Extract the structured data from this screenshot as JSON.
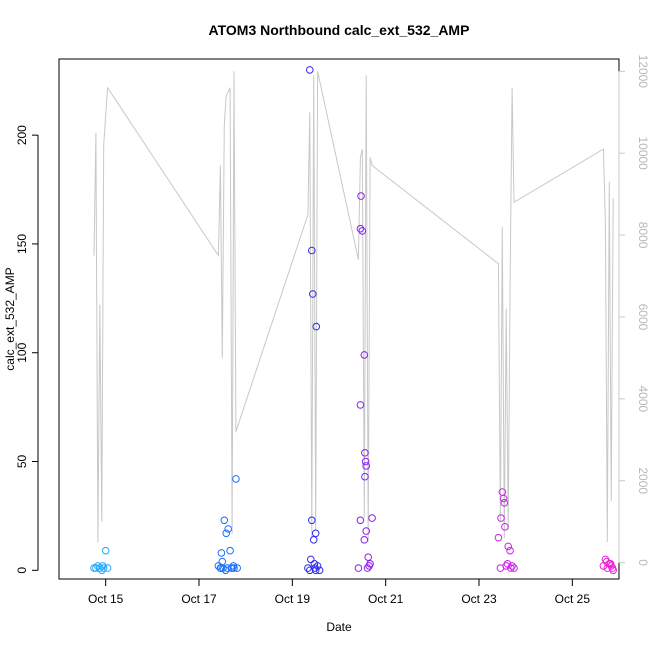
{
  "chart_data": {
    "type": "scatter",
    "title": "ATOM3 Northbound calc_ext_532_AMP",
    "xlabel": "Date",
    "ylabel": "calc_ext_532_AMP",
    "ylabel_right": "",
    "x_is_date": true,
    "xlim": [
      "2019-10-14",
      "2019-10-26"
    ],
    "x_ticks": [
      {
        "value": "2019-10-15",
        "label": "Oct 15"
      },
      {
        "value": "2019-10-17",
        "label": "Oct 17"
      },
      {
        "value": "2019-10-19",
        "label": "Oct 19"
      },
      {
        "value": "2019-10-21",
        "label": "Oct 21"
      },
      {
        "value": "2019-10-23",
        "label": "Oct 23"
      },
      {
        "value": "2019-10-25",
        "label": "Oct 25"
      }
    ],
    "ylim": [
      -4,
      235
    ],
    "y_ticks": [
      0,
      50,
      100,
      150,
      200
    ],
    "ylim_right": [
      -400,
      12300
    ],
    "y_ticks_right": [
      0,
      2000,
      4000,
      6000,
      8000,
      10000,
      12000
    ],
    "grid": false,
    "legend": "none",
    "colors": {
      "line": "#c8c8c8",
      "cluster_1": "#1ea8ff",
      "cluster_2": "#1870ff",
      "cluster_3": "#2e2cf0",
      "cluster_4": "#8a22ee",
      "cluster_5": "#ce22ee",
      "cluster_6": "#f020d8"
    },
    "series": [
      {
        "kind": "points",
        "axis": "left",
        "x": [
          "2019-10-14T18:00",
          "2019-10-14T19:00",
          "2019-10-14T20:00",
          "2019-10-14T21:00",
          "2019-10-14T22:00",
          "2019-10-14T23:00",
          "2019-10-15T00:00",
          "2019-10-15T01:00",
          "2019-10-14T22:30",
          "2019-10-17T10:00",
          "2019-10-17T11:00",
          "2019-10-17T11:30",
          "2019-10-17T12:00",
          "2019-10-17T13:00",
          "2019-10-17T14:00",
          "2019-10-17T15:00",
          "2019-10-17T16:00",
          "2019-10-17T17:00",
          "2019-10-17T18:00",
          "2019-10-17T19:00",
          "2019-10-17T11:20",
          "2019-10-17T12:20",
          "2019-10-17T13:40",
          "2019-10-17T14:40",
          "2019-10-17T16:40",
          "2019-10-17T17:40",
          "2019-10-17T19:40",
          "2019-10-19T08:00",
          "2019-10-19T09:00",
          "2019-10-19T10:00",
          "2019-10-19T11:00",
          "2019-10-19T12:00",
          "2019-10-19T13:00",
          "2019-10-19T09:30",
          "2019-10-19T11:20",
          "2019-10-19T12:20",
          "2019-10-19T10:30",
          "2019-10-19T10:00",
          "2019-10-19T09:00",
          "2019-10-19T12:00",
          "2019-10-19T11:40",
          "2019-10-19T14:00",
          "2019-10-20T10:00",
          "2019-10-20T11:00",
          "2019-10-20T11:20",
          "2019-10-20T11:00",
          "2019-10-20T12:00",
          "2019-10-20T13:00",
          "2019-10-20T13:00",
          "2019-10-20T13:20",
          "2019-10-20T13:40",
          "2019-10-20T14:00",
          "2019-10-20T13:20",
          "2019-10-20T11:00",
          "2019-10-20T14:00",
          "2019-10-20T15:00",
          "2019-10-20T16:00",
          "2019-10-20T17:00",
          "2019-10-20T15:30",
          "2019-10-20T14:40",
          "2019-10-23T10:00",
          "2019-10-23T11:00",
          "2019-10-23T11:20",
          "2019-10-23T12:00",
          "2019-10-23T12:40",
          "2019-10-23T13:00",
          "2019-10-23T13:20",
          "2019-10-23T14:00",
          "2019-10-23T15:00",
          "2019-10-23T16:00",
          "2019-10-23T17:00",
          "2019-10-23T18:00",
          "2019-10-23T14:40",
          "2019-10-23T16:20",
          "2019-10-25T16:00",
          "2019-10-25T17:00",
          "2019-10-25T18:00",
          "2019-10-25T19:00",
          "2019-10-25T20:00",
          "2019-10-25T21:00",
          "2019-10-25T17:40",
          "2019-10-25T19:40",
          "2019-10-25T20:40"
        ],
        "y": [
          1,
          1,
          2,
          1,
          0,
          1,
          9,
          1,
          2,
          2,
          1,
          8,
          4,
          23,
          17,
          19,
          9,
          1,
          1,
          42,
          1,
          1,
          0,
          1,
          1,
          2,
          1,
          1,
          0,
          23,
          14,
          17,
          2,
          5,
          3,
          112,
          127,
          147,
          230,
          0,
          1,
          0,
          1,
          23,
          172,
          157,
          156,
          14,
          99,
          54,
          50,
          48,
          43,
          76,
          18,
          6,
          3,
          24,
          2,
          1,
          15,
          1,
          24,
          36,
          33,
          31,
          20,
          2,
          11,
          9,
          2,
          1,
          3,
          1,
          2,
          5,
          1,
          3,
          2,
          0,
          4,
          3,
          1
        ],
        "cluster": [
          1,
          1,
          1,
          1,
          1,
          1,
          1,
          1,
          1,
          2,
          2,
          2,
          2,
          2,
          2,
          2,
          2,
          2,
          2,
          2,
          2,
          2,
          2,
          2,
          2,
          2,
          2,
          3,
          3,
          3,
          3,
          3,
          3,
          3,
          3,
          3,
          3,
          3,
          3,
          3,
          3,
          3,
          4,
          4,
          4,
          4,
          4,
          4,
          4,
          4,
          4,
          4,
          4,
          4,
          4,
          4,
          4,
          4,
          4,
          4,
          5,
          5,
          5,
          5,
          5,
          5,
          5,
          5,
          5,
          5,
          5,
          5,
          5,
          5,
          6,
          6,
          6,
          6,
          6,
          6,
          6,
          6,
          6
        ]
      },
      {
        "kind": "line",
        "axis": "right",
        "x": [
          "2019-10-14T18:00",
          "2019-10-14T19:00",
          "2019-10-14T20:00",
          "2019-10-14T21:00",
          "2019-10-14T22:00",
          "2019-10-14T23:00",
          "2019-10-15T01:00",
          "2019-10-17T10:00",
          "2019-10-17T11:00",
          "2019-10-17T12:00",
          "2019-10-17T13:00",
          "2019-10-17T14:00",
          "2019-10-17T15:00",
          "2019-10-17T16:00",
          "2019-10-17T17:00",
          "2019-10-17T18:00",
          "2019-10-17T19:00",
          "2019-10-19T08:00",
          "2019-10-19T09:00",
          "2019-10-19T10:00",
          "2019-10-19T11:00",
          "2019-10-19T12:00",
          "2019-10-19T13:00",
          "2019-10-20T10:00",
          "2019-10-20T11:00",
          "2019-10-20T12:00",
          "2019-10-20T13:00",
          "2019-10-20T14:00",
          "2019-10-20T15:00",
          "2019-10-20T16:00",
          "2019-10-20T17:00",
          "2019-10-23T10:00",
          "2019-10-23T11:00",
          "2019-10-23T12:00",
          "2019-10-23T13:00",
          "2019-10-23T14:00",
          "2019-10-23T15:00",
          "2019-10-23T16:00",
          "2019-10-23T17:00",
          "2019-10-23T18:00",
          "2019-10-25T16:00",
          "2019-10-25T17:00",
          "2019-10-25T18:00",
          "2019-10-25T19:00",
          "2019-10-25T20:00",
          "2019-10-25T21:00"
        ],
        "y": [
          7500,
          10500,
          500,
          6300,
          1000,
          10200,
          11600,
          7500,
          9700,
          5000,
          10700,
          11400,
          11500,
          11600,
          700,
          12000,
          3200,
          8500,
          11000,
          600,
          11900,
          800,
          12000,
          7400,
          9900,
          10100,
          1100,
          11900,
          500,
          9900,
          9700,
          7300,
          1000,
          8200,
          600,
          6200,
          800,
          6800,
          11600,
          8800,
          10100,
          8300,
          500,
          9300,
          1500,
          8900
        ]
      }
    ]
  }
}
